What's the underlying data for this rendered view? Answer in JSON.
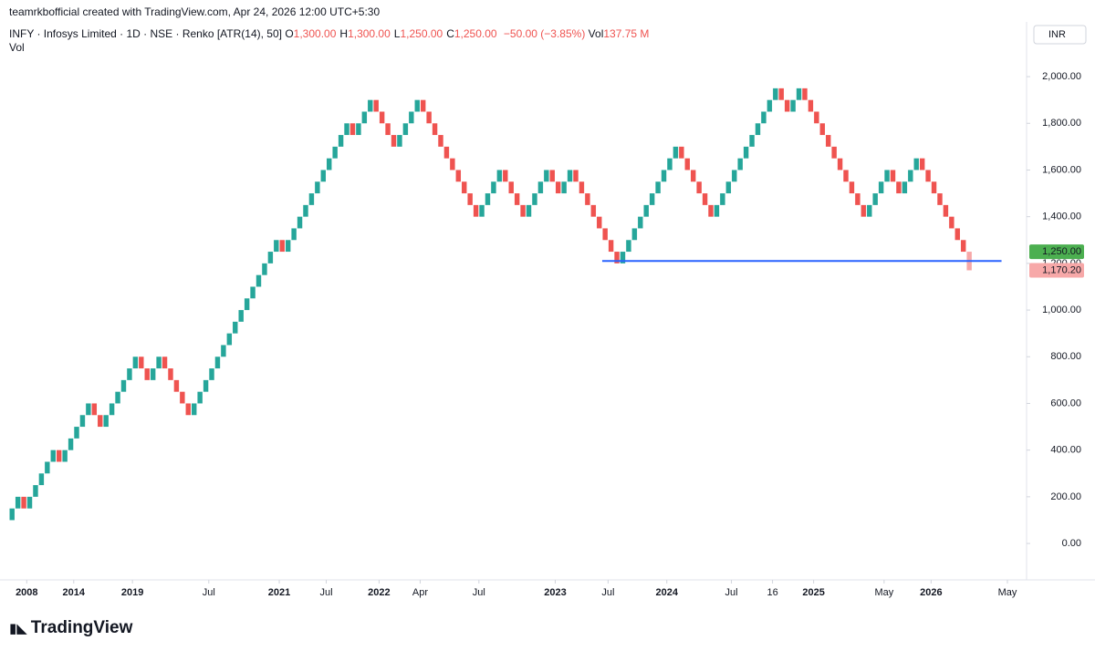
{
  "header": {
    "credit": "teamrkbofficial created with TradingView.com, Apr 24, 2026 12:00 UTC+5:30"
  },
  "legend": {
    "symbol": "INFY · Infosys Limited · 1D · NSE · Renko [ATR(14), 50]",
    "ohlc": [
      {
        "label": "O",
        "value": "1,300.00"
      },
      {
        "label": "H",
        "value": "1,300.00"
      },
      {
        "label": "L",
        "value": "1,250.00"
      },
      {
        "label": "C",
        "value": "1,250.00"
      }
    ],
    "change": "−50.00 (−3.85%)",
    "volume_label": "Vol",
    "volume_value": "137.75 M",
    "indicator": "Vol"
  },
  "currency": "INR",
  "logo": "TradingView",
  "chart_data": {
    "type": "renko",
    "open": 100,
    "values": [
      150,
      200,
      150,
      200,
      250,
      300,
      350,
      400,
      350,
      400,
      450,
      500,
      550,
      600,
      550,
      500,
      550,
      600,
      650,
      700,
      750,
      800,
      750,
      700,
      750,
      800,
      750,
      700,
      650,
      600,
      550,
      600,
      650,
      700,
      750,
      800,
      850,
      900,
      950,
      1000,
      1050,
      1100,
      1150,
      1200,
      1250,
      1300,
      1250,
      1300,
      1350,
      1400,
      1450,
      1500,
      1550,
      1600,
      1650,
      1700,
      1750,
      1800,
      1750,
      1800,
      1850,
      1900,
      1850,
      1800,
      1750,
      1700,
      1750,
      1800,
      1850,
      1900,
      1850,
      1800,
      1750,
      1700,
      1650,
      1600,
      1550,
      1500,
      1450,
      1400,
      1450,
      1500,
      1550,
      1600,
      1550,
      1500,
      1450,
      1400,
      1450,
      1500,
      1550,
      1600,
      1550,
      1500,
      1550,
      1600,
      1550,
      1500,
      1450,
      1400,
      1350,
      1300,
      1250,
      1200,
      1250,
      1300,
      1350,
      1400,
      1450,
      1500,
      1550,
      1600,
      1650,
      1700,
      1650,
      1600,
      1550,
      1500,
      1450,
      1400,
      1450,
      1500,
      1550,
      1600,
      1650,
      1700,
      1750,
      1800,
      1850,
      1900,
      1950,
      1900,
      1850,
      1900,
      1950,
      1900,
      1850,
      1800,
      1750,
      1700,
      1650,
      1600,
      1550,
      1500,
      1450,
      1400,
      1450,
      1500,
      1550,
      1600,
      1550,
      1500,
      1550,
      1600,
      1650,
      1600,
      1550,
      1500,
      1450,
      1400,
      1350,
      1300,
      1250
    ],
    "up_color": "#26a69a",
    "down_color": "#ef5350",
    "last_close": {
      "value": 1250,
      "label": "1,250.00",
      "color": "#4caf50"
    },
    "last_price": {
      "value": 1170.2,
      "label": "1,170.20",
      "color": "#f7a8a8"
    },
    "hline": {
      "value": 1210,
      "from": 101,
      "to": 169,
      "color": "#2962ff"
    },
    "ylim": [
      -156,
      2219
    ],
    "yticks": [
      {
        "value": 0,
        "label": "0.00"
      },
      {
        "value": 200,
        "label": "200.00"
      },
      {
        "value": 400,
        "label": "400.00"
      },
      {
        "value": 600,
        "label": "600.00"
      },
      {
        "value": 800,
        "label": "800.00"
      },
      {
        "value": 1000,
        "label": "1,000.00"
      },
      {
        "value": 1200,
        "label": "1,200.00"
      },
      {
        "value": 1400,
        "label": "1,400.00"
      },
      {
        "value": 1600,
        "label": "1,600.00"
      },
      {
        "value": 1800,
        "label": "1,800.00"
      },
      {
        "value": 2000,
        "label": "2,000.00"
      }
    ],
    "xlim": [
      0,
      170
    ],
    "xticks": [
      {
        "value": 3,
        "label": "2008"
      },
      {
        "value": 11,
        "label": "2014"
      },
      {
        "value": 21,
        "label": "2019"
      },
      {
        "value": 34,
        "label": "Jul"
      },
      {
        "value": 46,
        "label": "2021"
      },
      {
        "value": 54,
        "label": "Jul"
      },
      {
        "value": 63,
        "label": "2022"
      },
      {
        "value": 70,
        "label": "Apr"
      },
      {
        "value": 80,
        "label": "Jul"
      },
      {
        "value": 93,
        "label": "2023"
      },
      {
        "value": 102,
        "label": "Jul"
      },
      {
        "value": 112,
        "label": "2024"
      },
      {
        "value": 123,
        "label": "Jul"
      },
      {
        "value": 130,
        "label": "16"
      },
      {
        "value": 137,
        "label": "2025"
      },
      {
        "value": 149,
        "label": "May"
      },
      {
        "value": 157,
        "label": "2026"
      },
      {
        "value": 170,
        "label": "May"
      }
    ],
    "grid": false
  }
}
